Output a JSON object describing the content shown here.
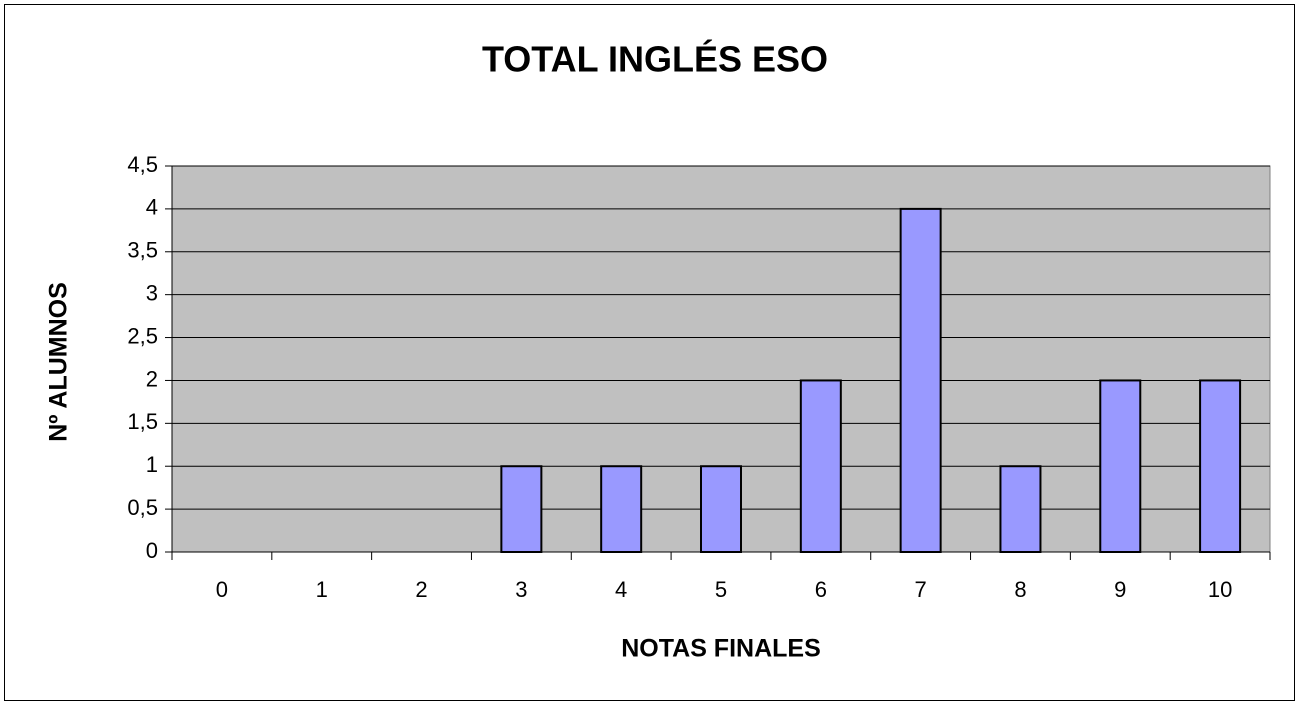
{
  "chart_data": {
    "type": "bar",
    "title": "TOTAL INGLÉS ESO",
    "x_label": "NOTAS FINALES",
    "y_label": "Nº ALUMNOS",
    "categories": [
      "0",
      "1",
      "2",
      "3",
      "4",
      "5",
      "6",
      "7",
      "8",
      "9",
      "10"
    ],
    "values": [
      0,
      0,
      0,
      1,
      1,
      1,
      2,
      4,
      1,
      2,
      2
    ],
    "color": "#9999ff",
    "ylim": [
      0,
      4.5
    ],
    "yticks": [
      0,
      {
        "value": 0.5,
        "label": "0,5"
      },
      1,
      {
        "value": 1.5,
        "label": "1,5"
      },
      2,
      {
        "value": 2.5,
        "label": "2,5"
      },
      3,
      {
        "value": 3.5,
        "label": "3,5"
      },
      4,
      {
        "value": 4.5,
        "label": "4,5"
      }
    ],
    "grid": true
  }
}
